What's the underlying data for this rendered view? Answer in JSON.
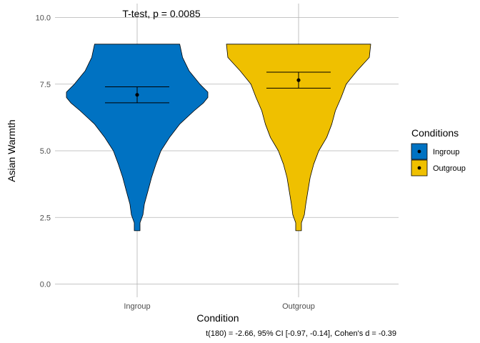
{
  "chart_data": {
    "type": "violin",
    "title": "T-test, p = 0.0085",
    "xlabel": "Condition",
    "ylabel": "Asian Warmth",
    "caption": "t(180) = -2.66, 95% CI [-0.97, -0.14], Cohen's d = -0.39",
    "ylim": [
      -0.4,
      10.4
    ],
    "yticks": [
      0.0,
      2.5,
      5.0,
      7.5,
      10.0
    ],
    "ytick_labels": [
      "0.0",
      "2.5",
      "5.0",
      "7.5",
      "10.0"
    ],
    "categories": [
      "Ingroup",
      "Outgroup"
    ],
    "grid": true,
    "legend": {
      "title": "Conditions",
      "position": "right",
      "entries": [
        "Ingroup",
        "Outgroup"
      ]
    },
    "series": [
      {
        "name": "Ingroup",
        "color": "#0072C2",
        "mean": 7.1,
        "ci": [
          6.8,
          7.4
        ],
        "density_y": [
          2.0,
          2.3,
          2.6,
          3.0,
          3.5,
          4.0,
          4.5,
          5.0,
          5.5,
          6.0,
          6.5,
          6.8,
          7.0,
          7.2,
          7.5,
          8.0,
          8.5,
          9.0
        ],
        "density_w": [
          0.04,
          0.04,
          0.08,
          0.1,
          0.15,
          0.2,
          0.26,
          0.33,
          0.45,
          0.59,
          0.79,
          0.92,
          0.98,
          0.98,
          0.87,
          0.72,
          0.63,
          0.59
        ]
      },
      {
        "name": "Outgroup",
        "color": "#EFC000",
        "mean": 7.65,
        "ci": [
          7.35,
          7.95
        ],
        "density_y": [
          2.0,
          2.3,
          2.6,
          3.0,
          3.5,
          4.0,
          4.5,
          5.0,
          5.5,
          6.0,
          6.5,
          7.0,
          7.5,
          8.0,
          8.5,
          9.0
        ],
        "density_w": [
          0.04,
          0.04,
          0.08,
          0.1,
          0.13,
          0.16,
          0.21,
          0.28,
          0.39,
          0.46,
          0.51,
          0.59,
          0.66,
          0.81,
          0.98,
          1.0
        ]
      }
    ]
  }
}
